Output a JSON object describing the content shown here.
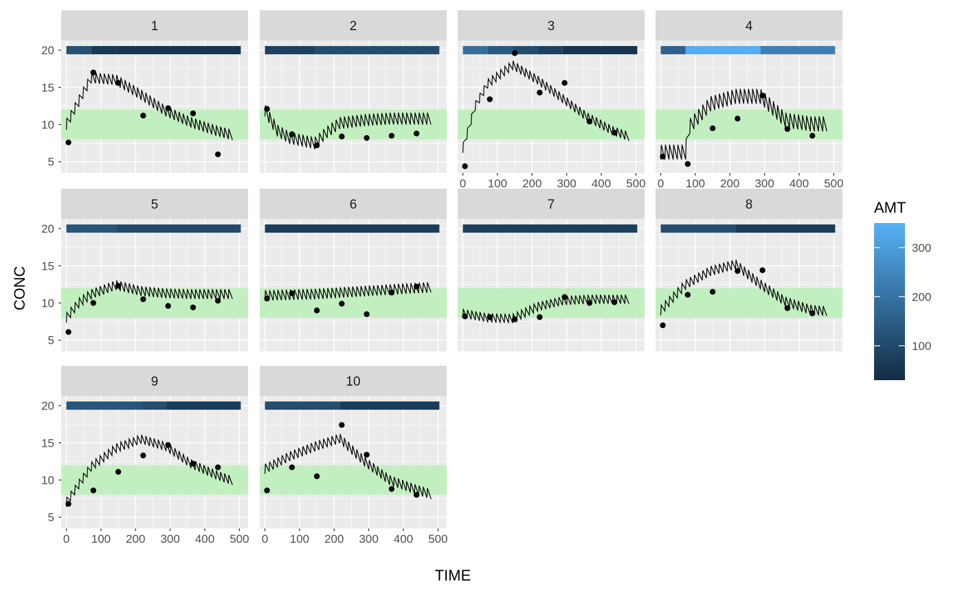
{
  "chart_data": {
    "type": "line",
    "x_label": "TIME",
    "y_label": "CONC",
    "xlim": [
      -15,
      525
    ],
    "ylim": [
      3.5,
      21.3
    ],
    "x_ticks": [
      0,
      100,
      200,
      300,
      400,
      500
    ],
    "x_tick_labels": [
      "0",
      "100",
      "200",
      "300",
      "400",
      "500"
    ],
    "y_ticks": [
      5,
      10,
      15,
      20
    ],
    "y_tick_labels": [
      "5",
      "10",
      "15",
      "20"
    ],
    "grid": true,
    "target_band": {
      "ymin": 8,
      "ymax": 12,
      "color": "#c2efc0"
    },
    "legend": {
      "title": "AMT",
      "position": "right",
      "range": [
        30,
        350
      ],
      "ticks": [
        100,
        200,
        300
      ],
      "tick_labels": [
        "100",
        "200",
        "300"
      ],
      "low_color": "#132b43",
      "high_color": "#56b1f7"
    },
    "dose_interval": 12,
    "dose_bar_y": 20,
    "panels": [
      {
        "label": "1",
        "dose_segments": [
          [
            0,
            72,
            120
          ],
          [
            72,
            144,
            60
          ],
          [
            144,
            504,
            50
          ]
        ],
        "curve": [
          [
            0,
            10
          ],
          [
            72,
            16.3
          ],
          [
            144,
            16.0
          ],
          [
            216,
            14.0
          ],
          [
            288,
            11.8
          ],
          [
            360,
            10.3
          ],
          [
            432,
            9.2
          ],
          [
            480,
            8.6
          ]
        ],
        "curve_amp": 1.4,
        "points": [
          [
            6,
            7.6
          ],
          [
            78,
            17.0
          ],
          [
            150,
            15.6
          ],
          [
            222,
            11.2
          ],
          [
            294,
            12.2
          ],
          [
            366,
            11.5
          ],
          [
            438,
            6.0
          ]
        ]
      },
      {
        "label": "2",
        "dose_segments": [
          [
            0,
            144,
            80
          ],
          [
            144,
            504,
            110
          ]
        ],
        "curve": [
          [
            0,
            11.9
          ],
          [
            36,
            9.2
          ],
          [
            72,
            8.2
          ],
          [
            144,
            7.5
          ],
          [
            180,
            9.0
          ],
          [
            216,
            10.2
          ],
          [
            288,
            10.6
          ],
          [
            360,
            10.8
          ],
          [
            480,
            10.8
          ]
        ],
        "curve_amp": 1.6,
        "points": [
          [
            6,
            12.1
          ],
          [
            78,
            8.7
          ],
          [
            150,
            7.2
          ],
          [
            222,
            8.4
          ],
          [
            294,
            8.2
          ],
          [
            366,
            8.5
          ],
          [
            438,
            8.8
          ]
        ]
      },
      {
        "label": "3",
        "dose_segments": [
          [
            0,
            72,
            190
          ],
          [
            72,
            144,
            140
          ],
          [
            144,
            216,
            110
          ],
          [
            216,
            288,
            80
          ],
          [
            288,
            504,
            50
          ]
        ],
        "curve": [
          [
            0,
            6.8
          ],
          [
            36,
            12.5
          ],
          [
            72,
            15.5
          ],
          [
            144,
            18.0
          ],
          [
            216,
            16.0
          ],
          [
            288,
            13.5
          ],
          [
            360,
            11.0
          ],
          [
            432,
            9.2
          ],
          [
            480,
            8.4
          ]
        ],
        "curve_amp": 1.2,
        "points": [
          [
            6,
            4.4
          ],
          [
            78,
            13.4
          ],
          [
            150,
            19.6
          ],
          [
            222,
            14.3
          ],
          [
            294,
            15.6
          ],
          [
            366,
            10.4
          ],
          [
            438,
            8.9
          ]
        ]
      },
      {
        "label": "4",
        "dose_segments": [
          [
            0,
            72,
            160
          ],
          [
            72,
            288,
            340
          ],
          [
            288,
            504,
            230
          ]
        ],
        "curve": [
          [
            0,
            6.3
          ],
          [
            72,
            6.3
          ],
          [
            78,
            9.5
          ],
          [
            144,
            12.8
          ],
          [
            216,
            13.8
          ],
          [
            288,
            13.8
          ],
          [
            360,
            10.6
          ],
          [
            432,
            10.1
          ],
          [
            480,
            10.1
          ]
        ],
        "curve_amp": 2.0,
        "points": [
          [
            6,
            5.7
          ],
          [
            78,
            4.7
          ],
          [
            150,
            9.5
          ],
          [
            222,
            10.8
          ],
          [
            294,
            13.9
          ],
          [
            366,
            9.4
          ],
          [
            438,
            8.5
          ]
        ]
      },
      {
        "label": "5",
        "dose_segments": [
          [
            0,
            144,
            130
          ],
          [
            144,
            504,
            100
          ]
        ],
        "curve": [
          [
            0,
            8.0
          ],
          [
            36,
            10.0
          ],
          [
            72,
            11.2
          ],
          [
            144,
            12.4
          ],
          [
            216,
            11.6
          ],
          [
            288,
            11.3
          ],
          [
            360,
            11.2
          ],
          [
            480,
            11.2
          ]
        ],
        "curve_amp": 1.3,
        "points": [
          [
            6,
            6.1
          ],
          [
            78,
            10.0
          ],
          [
            150,
            12.3
          ],
          [
            222,
            10.5
          ],
          [
            294,
            9.6
          ],
          [
            366,
            9.4
          ],
          [
            438,
            10.3
          ]
        ]
      },
      {
        "label": "6",
        "dose_segments": [
          [
            0,
            504,
            70
          ]
        ],
        "curve": [
          [
            0,
            11.0
          ],
          [
            144,
            11.2
          ],
          [
            288,
            11.6
          ],
          [
            432,
            12.0
          ],
          [
            480,
            12.1
          ]
        ],
        "curve_amp": 1.4,
        "points": [
          [
            6,
            10.6
          ],
          [
            78,
            11.3
          ],
          [
            150,
            9.0
          ],
          [
            222,
            9.9
          ],
          [
            294,
            8.5
          ],
          [
            366,
            11.4
          ],
          [
            438,
            12.2
          ]
        ]
      },
      {
        "label": "7",
        "dose_segments": [
          [
            0,
            504,
            80
          ]
        ],
        "curve": [
          [
            0,
            8.6
          ],
          [
            72,
            8.0
          ],
          [
            144,
            7.9
          ],
          [
            216,
            9.5
          ],
          [
            288,
            10.3
          ],
          [
            360,
            10.5
          ],
          [
            480,
            10.5
          ]
        ],
        "curve_amp": 1.2,
        "points": [
          [
            6,
            8.2
          ],
          [
            78,
            8.1
          ],
          [
            150,
            7.8
          ],
          [
            222,
            8.1
          ],
          [
            294,
            10.8
          ],
          [
            366,
            10.0
          ],
          [
            438,
            10.1
          ]
        ]
      },
      {
        "label": "8",
        "dose_segments": [
          [
            0,
            216,
            110
          ],
          [
            216,
            504,
            70
          ]
        ],
        "curve": [
          [
            0,
            9.0
          ],
          [
            72,
            12.5
          ],
          [
            144,
            14.3
          ],
          [
            216,
            15.2
          ],
          [
            288,
            12.5
          ],
          [
            360,
            10.2
          ],
          [
            432,
            9.1
          ],
          [
            480,
            8.9
          ]
        ],
        "curve_amp": 1.3,
        "points": [
          [
            6,
            7.0
          ],
          [
            78,
            11.1
          ],
          [
            150,
            11.5
          ],
          [
            222,
            14.3
          ],
          [
            294,
            14.4
          ],
          [
            366,
            9.3
          ],
          [
            438,
            8.6
          ]
        ]
      },
      {
        "label": "9",
        "dose_segments": [
          [
            0,
            216,
            130
          ],
          [
            216,
            288,
            110
          ],
          [
            288,
            504,
            70
          ]
        ],
        "curve": [
          [
            0,
            7.0
          ],
          [
            72,
            11.8
          ],
          [
            144,
            14.3
          ],
          [
            216,
            15.5
          ],
          [
            288,
            14.5
          ],
          [
            360,
            12.2
          ],
          [
            432,
            10.7
          ],
          [
            480,
            9.9
          ]
        ],
        "curve_amp": 1.2,
        "points": [
          [
            6,
            6.8
          ],
          [
            78,
            8.6
          ],
          [
            150,
            11.1
          ],
          [
            222,
            13.3
          ],
          [
            294,
            14.7
          ],
          [
            366,
            12.2
          ],
          [
            438,
            11.7
          ]
        ]
      },
      {
        "label": "10",
        "dose_segments": [
          [
            0,
            216,
            110
          ],
          [
            216,
            504,
            70
          ]
        ],
        "curve": [
          [
            0,
            11.5
          ],
          [
            72,
            13.2
          ],
          [
            144,
            14.5
          ],
          [
            216,
            15.6
          ],
          [
            288,
            12.5
          ],
          [
            360,
            10.0
          ],
          [
            432,
            8.8
          ],
          [
            480,
            8.1
          ]
        ],
        "curve_amp": 1.3,
        "points": [
          [
            6,
            8.6
          ],
          [
            78,
            11.7
          ],
          [
            150,
            10.5
          ],
          [
            222,
            17.4
          ],
          [
            294,
            13.4
          ],
          [
            366,
            8.8
          ],
          [
            438,
            8.0
          ]
        ]
      }
    ]
  }
}
